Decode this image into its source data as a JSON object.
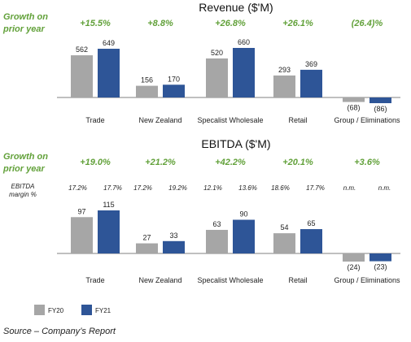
{
  "chart_data": [
    {
      "type": "bar",
      "title": "Revenue ($'M)",
      "growth_label": "Growth on prior year",
      "categories": [
        "Trade",
        "New Zealand",
        "Specalist Wholesale",
        "Retail",
        "Group / Eliminations"
      ],
      "growth": [
        "+15.5%",
        "+8.8%",
        "+26.8%",
        "+26.1%",
        "(26.4)%"
      ],
      "series": [
        {
          "name": "FY20",
          "values": [
            562,
            156,
            520,
            293,
            -68
          ],
          "labels": [
            "562",
            "156",
            "520",
            "293",
            "(68)"
          ]
        },
        {
          "name": "FY21",
          "values": [
            649,
            170,
            660,
            369,
            -86
          ],
          "labels": [
            "649",
            "170",
            "660",
            "369",
            "(86)"
          ]
        }
      ],
      "ylim": [
        -86,
        660
      ]
    },
    {
      "type": "bar",
      "title": "EBITDA ($'M)",
      "growth_label": "Growth on prior year",
      "margin_label": "EBITDA margin %",
      "categories": [
        "Trade",
        "New Zealand",
        "Specalist Wholesale",
        "Retail",
        "Group / Eliminations"
      ],
      "growth": [
        "+19.0%",
        "+21.2%",
        "+42.2%",
        "+20.1%",
        "+3.6%"
      ],
      "margins": [
        [
          "17.2%",
          "17.7%"
        ],
        [
          "17.2%",
          "19.2%"
        ],
        [
          "12.1%",
          "13.6%"
        ],
        [
          "18.6%",
          "17.7%"
        ],
        [
          "n.m.",
          "n.m."
        ]
      ],
      "series": [
        {
          "name": "FY20",
          "values": [
            97,
            27,
            63,
            54,
            -24
          ],
          "labels": [
            "97",
            "27",
            "63",
            "54",
            "(24)"
          ]
        },
        {
          "name": "FY21",
          "values": [
            115,
            33,
            90,
            65,
            -23
          ],
          "labels": [
            "115",
            "33",
            "90",
            "65",
            "(23)"
          ]
        }
      ],
      "ylim": [
        -24,
        115
      ]
    }
  ],
  "legend": [
    {
      "label": "FY20",
      "color": "#a6a6a6"
    },
    {
      "label": "FY21",
      "color": "#2e5597"
    }
  ],
  "colors": {
    "fy20": "#a6a6a6",
    "fy21": "#2e5597",
    "growth": "#62a13a",
    "axis": "#808080"
  },
  "source": "Source – Company’s Report"
}
